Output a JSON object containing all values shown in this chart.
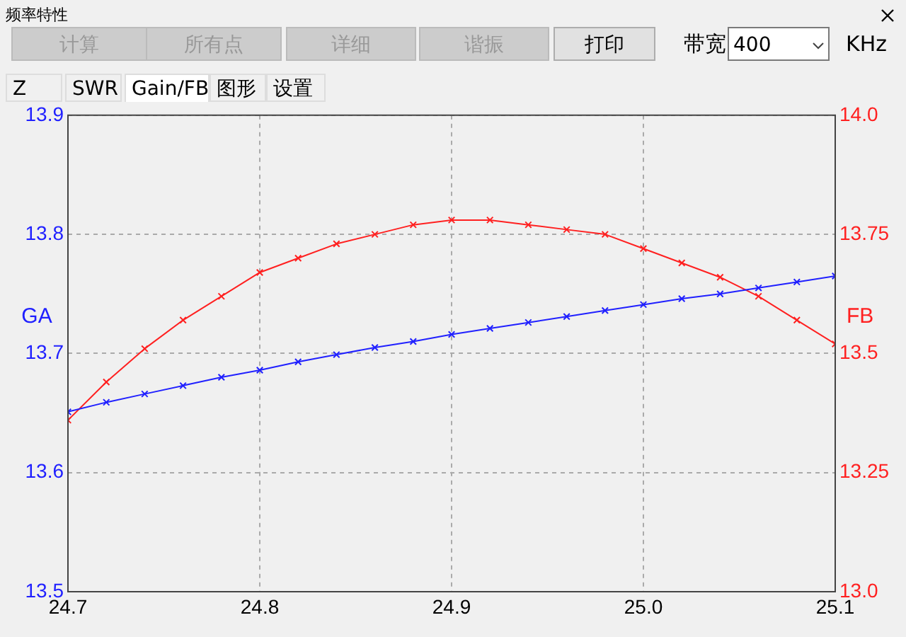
{
  "chart_data": {
    "type": "line",
    "title": "频率特性",
    "annotations": [
      "计算",
      "所有点",
      "详细",
      "谐振",
      "打印",
      "带宽",
      "400",
      "KHz",
      "Z",
      "SWR",
      "Gain/FB",
      "图形",
      "设置"
    ],
    "ylabel": "GA",
    "y2label": "FB",
    "x": [
      24.7,
      24.72,
      24.74,
      24.76,
      24.78,
      24.8,
      24.82,
      24.84,
      24.86,
      24.88,
      24.9,
      24.92,
      24.94,
      24.96,
      24.98,
      25.0,
      25.02,
      25.04,
      25.06,
      25.08,
      25.1
    ],
    "series": [
      {
        "color": "#2020ff",
        "values": [
          13.651,
          13.659,
          13.666,
          13.673,
          13.68,
          13.686,
          13.693,
          13.699,
          13.705,
          13.71,
          13.716,
          13.721,
          13.726,
          13.731,
          13.736,
          13.741,
          13.746,
          13.75,
          13.755,
          13.76,
          13.765
        ]
      },
      {
        "color": "#ff2020",
        "axis": "y2",
        "values": [
          13.36,
          13.44,
          13.51,
          13.57,
          13.62,
          13.67,
          13.7,
          13.73,
          13.75,
          13.77,
          13.78,
          13.78,
          13.77,
          13.76,
          13.75,
          13.72,
          13.69,
          13.66,
          13.62,
          13.57,
          13.52
        ]
      }
    ],
    "xlim": [
      24.7,
      25.1
    ],
    "xticks": [
      {
        "value": 24.7,
        "label": "24.7"
      },
      24.8,
      24.9,
      {
        "value": 25.0,
        "label": "25.0"
      },
      25.1
    ],
    "ylim": [
      13.5,
      13.9
    ],
    "yticks": [
      13.5,
      13.6,
      13.7,
      13.8,
      13.9
    ],
    "y2lim": [
      13.0,
      14.0
    ],
    "y2ticks": [
      {
        "value": 13.0,
        "label": "13.0"
      },
      13.25,
      13.5,
      13.75,
      {
        "value": 14.0,
        "label": "14.0"
      }
    ],
    "grid": true,
    "legend": false,
    "marker": "cross",
    "line_style": "solid"
  }
}
